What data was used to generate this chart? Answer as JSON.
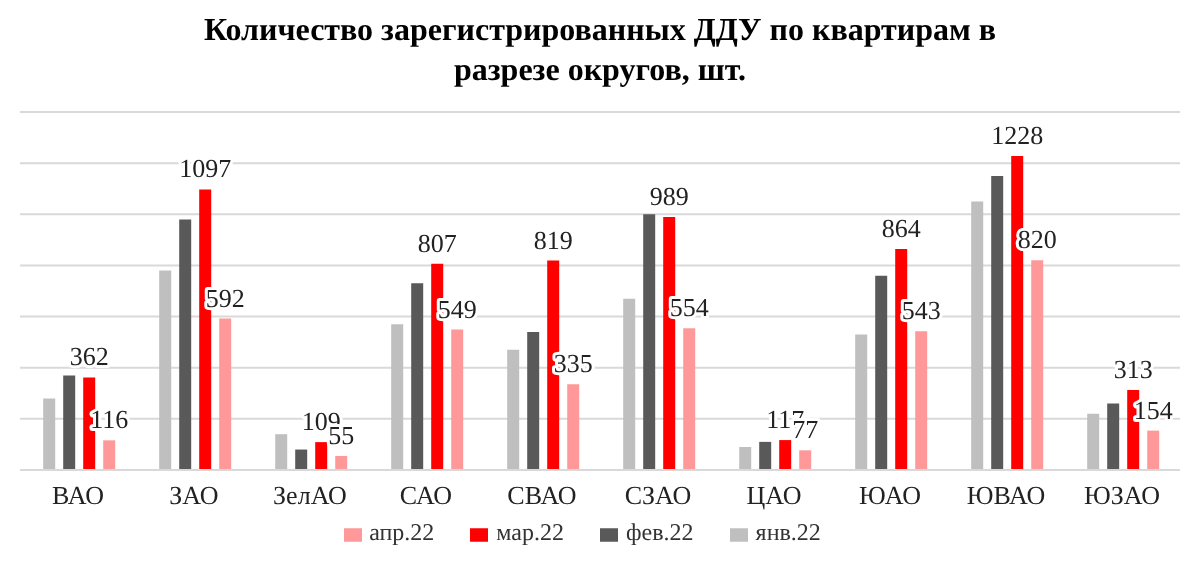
{
  "chart_data": {
    "type": "bar",
    "title": "Количество зарегистрированных ДДУ по квартирам в разрезе округов, шт.",
    "categories": [
      "ВАО",
      "ЗАО",
      "ЗелАО",
      "САО",
      "СВАО",
      "СЗАО",
      "ЦАО",
      "ЮАО",
      "ЮВАО",
      "ЮЗАО"
    ],
    "series": [
      {
        "name": "янв.22",
        "color": "#bfbfbf",
        "values": [
          280,
          780,
          140,
          570,
          470,
          670,
          90,
          530,
          1050,
          220
        ]
      },
      {
        "name": "фев.22",
        "color": "#595959",
        "values": [
          370,
          980,
          80,
          730,
          540,
          1000,
          110,
          760,
          1150,
          260
        ]
      },
      {
        "name": "мар.22",
        "color": "#ff0000",
        "values": [
          362,
          1097,
          109,
          807,
          819,
          989,
          117,
          864,
          1228,
          313
        ],
        "value_labels": [
          "362",
          "1097",
          "109",
          "807",
          "819",
          "989",
          "117",
          "864",
          "1228",
          "313"
        ]
      },
      {
        "name": "апр.22",
        "color": "#ff9999",
        "values": [
          116,
          592,
          55,
          549,
          335,
          554,
          77,
          543,
          820,
          154
        ],
        "value_labels": [
          "116",
          "592",
          "55",
          "549",
          "335",
          "554",
          "77",
          "543",
          "820",
          "154"
        ]
      }
    ],
    "ylim": [
      0,
      1400
    ],
    "tick_labels": "x",
    "grid": "y",
    "legend": "bottom"
  }
}
